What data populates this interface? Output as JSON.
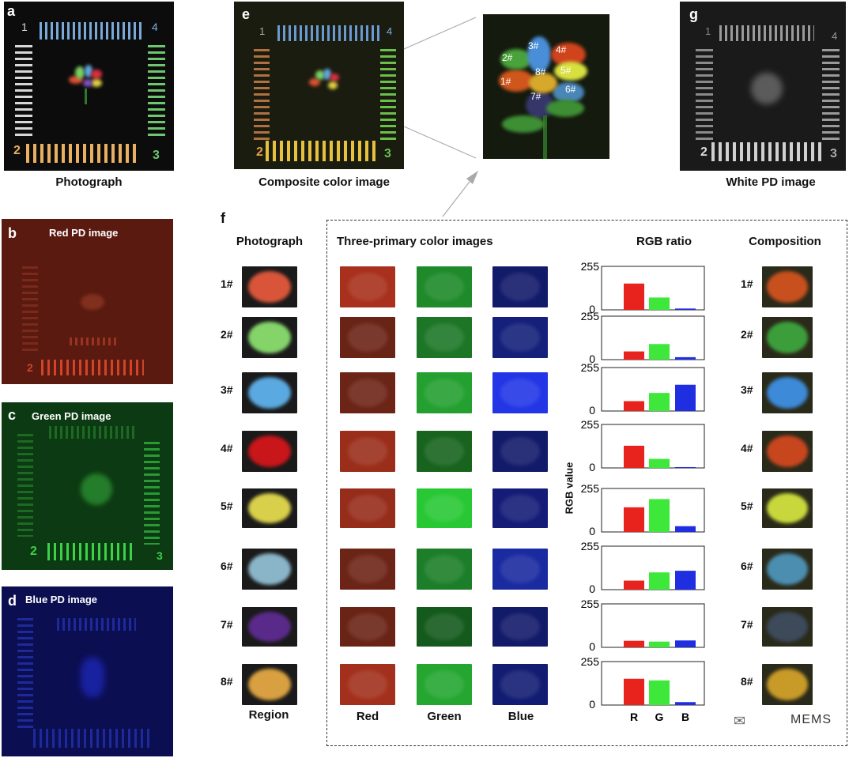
{
  "panels": {
    "a": {
      "letter": "a",
      "caption": "Photograph"
    },
    "b": {
      "letter": "b",
      "title": "Red PD image"
    },
    "c": {
      "letter": "c",
      "title": "Green PD image"
    },
    "d": {
      "letter": "d",
      "title": "Blue PD image"
    },
    "e": {
      "letter": "e",
      "caption": "Composite color image"
    },
    "g": {
      "letter": "g",
      "caption": "White PD image"
    },
    "f": {
      "letter": "f"
    }
  },
  "target_numbers": {
    "n1": "1",
    "n2": "2",
    "n3": "3",
    "n4": "4"
  },
  "petal_labels": [
    "1#",
    "2#",
    "3#",
    "4#",
    "5#",
    "6#",
    "7#",
    "8#"
  ],
  "section_f": {
    "photograph_header": "Photograph",
    "three_primary_header": "Three-primary color images",
    "rgb_ratio_header": "RGB ratio",
    "composition_header": "Composition",
    "region_label": "Region",
    "channel_labels": [
      "Red",
      "Green",
      "Blue"
    ],
    "y_axis_label": "RGB value",
    "y_ticks": [
      "255",
      "0"
    ],
    "x_ticks": [
      "R",
      "G",
      "B"
    ],
    "watermark": "MEMS",
    "rows": [
      "1#",
      "2#",
      "3#",
      "4#",
      "5#",
      "6#",
      "7#",
      "8#"
    ],
    "photo_colors": [
      "#d8553a",
      "#84d46a",
      "#5aa9e0",
      "#c8161a",
      "#d8d04a",
      "#8ab4c8",
      "#5a2a8a",
      "#d8a040"
    ],
    "composition_colors": [
      "#c8501e",
      "#3c9e3a",
      "#3c8ad8",
      "#c8461e",
      "#c8d83c",
      "#4c8eb0",
      "#3c4a5a",
      "#c89a28"
    ],
    "red_tile_colors": [
      "#a8301c",
      "#6a2416",
      "#6c2416",
      "#9a2e1a",
      "#962c1a",
      "#6c2416",
      "#6a2416",
      "#a2301c"
    ],
    "green_tile_colors": [
      "#1e8a2a",
      "#1c7626",
      "#24a030",
      "#18641e",
      "#28c834",
      "#1c7e28",
      "#145a1c",
      "#24a630"
    ],
    "blue_tile_colors": [
      "#121a6a",
      "#14207a",
      "#2236e6",
      "#121a6a",
      "#141c78",
      "#1a2aa0",
      "#121a6a",
      "#121c72"
    ]
  },
  "chart_data": {
    "type": "bar",
    "ylabel": "RGB value",
    "ylim": [
      0,
      255
    ],
    "categories": [
      "R",
      "G",
      "B"
    ],
    "colors": [
      "#e8221c",
      "#3ee83a",
      "#1e2ee0"
    ],
    "panels": [
      {
        "name": "1#",
        "values": [
          160,
          75,
          8
        ]
      },
      {
        "name": "2#",
        "values": [
          50,
          95,
          15
        ]
      },
      {
        "name": "3#",
        "values": [
          60,
          110,
          160
        ]
      },
      {
        "name": "4#",
        "values": [
          135,
          55,
          5
        ]
      },
      {
        "name": "5#",
        "values": [
          150,
          200,
          35
        ]
      },
      {
        "name": "6#",
        "values": [
          55,
          105,
          115
        ]
      },
      {
        "name": "7#",
        "values": [
          40,
          35,
          42
        ]
      },
      {
        "name": "8#",
        "values": [
          160,
          150,
          18
        ]
      }
    ]
  }
}
